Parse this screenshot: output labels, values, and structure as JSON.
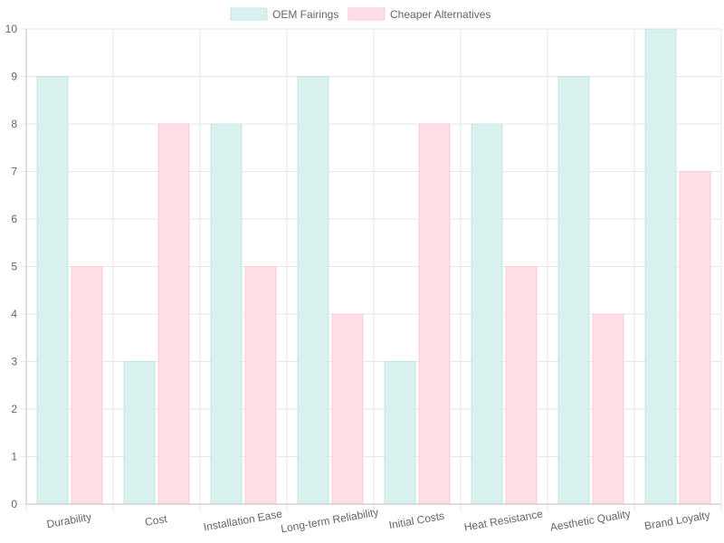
{
  "chart_data": {
    "type": "bar",
    "categories": [
      "Durability",
      "Cost",
      "Installation Ease",
      "Long-term Reliability",
      "Initial Costs",
      "Heat Resistance",
      "Aesthetic Quality",
      "Brand Loyalty"
    ],
    "series": [
      {
        "name": "OEM Fairings",
        "values": [
          9,
          3,
          8,
          9,
          3,
          8,
          9,
          10
        ],
        "color": "#d9f1ee",
        "border": "#bfe7e1"
      },
      {
        "name": "Cheaper Alternatives",
        "values": [
          5,
          8,
          5,
          4,
          8,
          5,
          4,
          7
        ],
        "color": "#ffdfe5",
        "border": "#ffc9d3"
      }
    ],
    "title": "",
    "xlabel": "",
    "ylabel": "",
    "ylim": [
      0,
      10
    ],
    "yticks": [
      0,
      1,
      2,
      3,
      4,
      5,
      6,
      7,
      8,
      9,
      10
    ],
    "grid": true,
    "legend_position": "top-center"
  }
}
